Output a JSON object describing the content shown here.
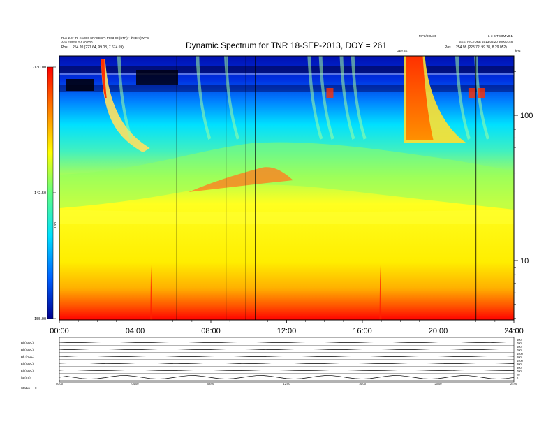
{
  "chart_data": {
    "type": "heatmap",
    "title": "Dynamic Spectrum for TNR 18-SEP-2013, DOY = 261",
    "header": {
      "top_left_line1": "Run 2.0 • RI X(x000 SPACEBP) P003 00 (STR) • dV(EXI)WPC",
      "top_left_line2": "Anti FIRES 2.4 v0.000",
      "top_left_pos_label": "Pos",
      "top_left_pos_value": "254.20 (227.64, 99.08, 7.674.59)",
      "top_mid_right": "MP3/DOA00",
      "top_right_line1": "L-3 BITCOM v0.1",
      "top_right_line2": "SEE_PICTURE 2013.06.20 30000148",
      "top_right_pos_label": "Pos",
      "top_right_pos_value": "254.98 (228.72, 99.28, 8.29.052)",
      "marker_label": "GEYSE",
      "freq_corner_label": "kHz"
    },
    "x_axis": {
      "range_hours": [
        0,
        24
      ],
      "ticks": [
        "00:00",
        "04:00",
        "08:00",
        "12:00",
        "16:00",
        "20:00",
        "24:00"
      ]
    },
    "y_axis_right": {
      "scale": "log",
      "unit": "kHz",
      "ticks": [
        "100",
        "10"
      ]
    },
    "colorbar": {
      "label": "TNR",
      "min_db": -155.0,
      "max_db": -130.0,
      "ticks": [
        "-130.00",
        "-142.50",
        "-155.00"
      ],
      "colors": [
        "#000090",
        "#0060ff",
        "#00e0ff",
        "#60ff80",
        "#ffff00",
        "#ff8000",
        "#ff0000"
      ]
    },
    "vertical_lines_hours": [
      6.2,
      8.8,
      9.85,
      10.35,
      22.0
    ],
    "features": [
      {
        "name": "type III burst",
        "start_hour": 2.2
      },
      {
        "name": "intense burst",
        "start_hour": 18.2,
        "end_hour": 19.3
      }
    ],
    "panels": {
      "labels": [
        "Bi (AGC)",
        "Bj (AGC)",
        "Bk (AGC)",
        "Ej (AGC)",
        "Ei (AGC)",
        "|B|(nT)"
      ],
      "right_values": [
        [
          "400",
          "200"
        ],
        [
          "400",
          "200"
        ],
        [
          "1500",
          "500"
        ],
        [
          "1500",
          "500"
        ],
        [
          "300",
          "200"
        ],
        [
          "20",
          "0"
        ]
      ],
      "x_ticks": [
        "00:00",
        "04:00",
        "08:00",
        "12:00",
        "16:00",
        "20:00",
        "24:00"
      ],
      "footer_label": "Status",
      "footer_value": "0"
    }
  }
}
